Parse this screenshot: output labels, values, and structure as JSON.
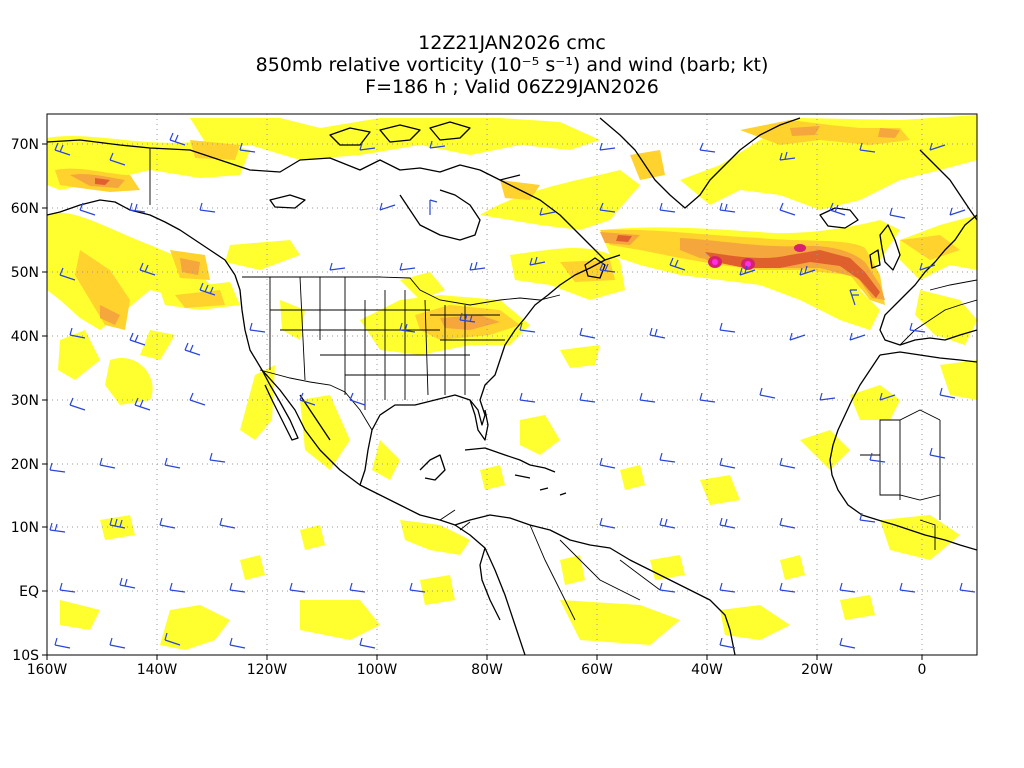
{
  "title": {
    "line1": "12Z21JAN2026 cmc",
    "line2": "850mb relative vorticity (10⁻⁵ s⁻¹) and wind (barb; kt)",
    "line3": "F=186 h ; Valid 06Z29JAN2026"
  },
  "axes": {
    "lon_labels": [
      "160W",
      "140W",
      "120W",
      "100W",
      "80W",
      "60W",
      "40W",
      "20W",
      "0"
    ],
    "lat_labels": [
      "70N",
      "60N",
      "50N",
      "40N",
      "30N",
      "20N",
      "10N",
      "EQ",
      "10S"
    ],
    "lon_range": [
      -160,
      10
    ],
    "lat_range": [
      -10,
      75
    ]
  },
  "colors": {
    "vort_low": "#ffff30",
    "vort_mid": "#ffd22e",
    "vort_high": "#f5a63c",
    "vort_higher": "#e0602d",
    "vort_max": "#d8216e",
    "vort_peak": "#ff30e8",
    "coast": "#000000",
    "barb": "#2a46d8",
    "grid": "#9a9a9a"
  },
  "map_data": {
    "vorticity_maxima": [
      {
        "lon": -39,
        "lat": 51
      },
      {
        "lon": -32,
        "lat": 51
      }
    ]
  }
}
